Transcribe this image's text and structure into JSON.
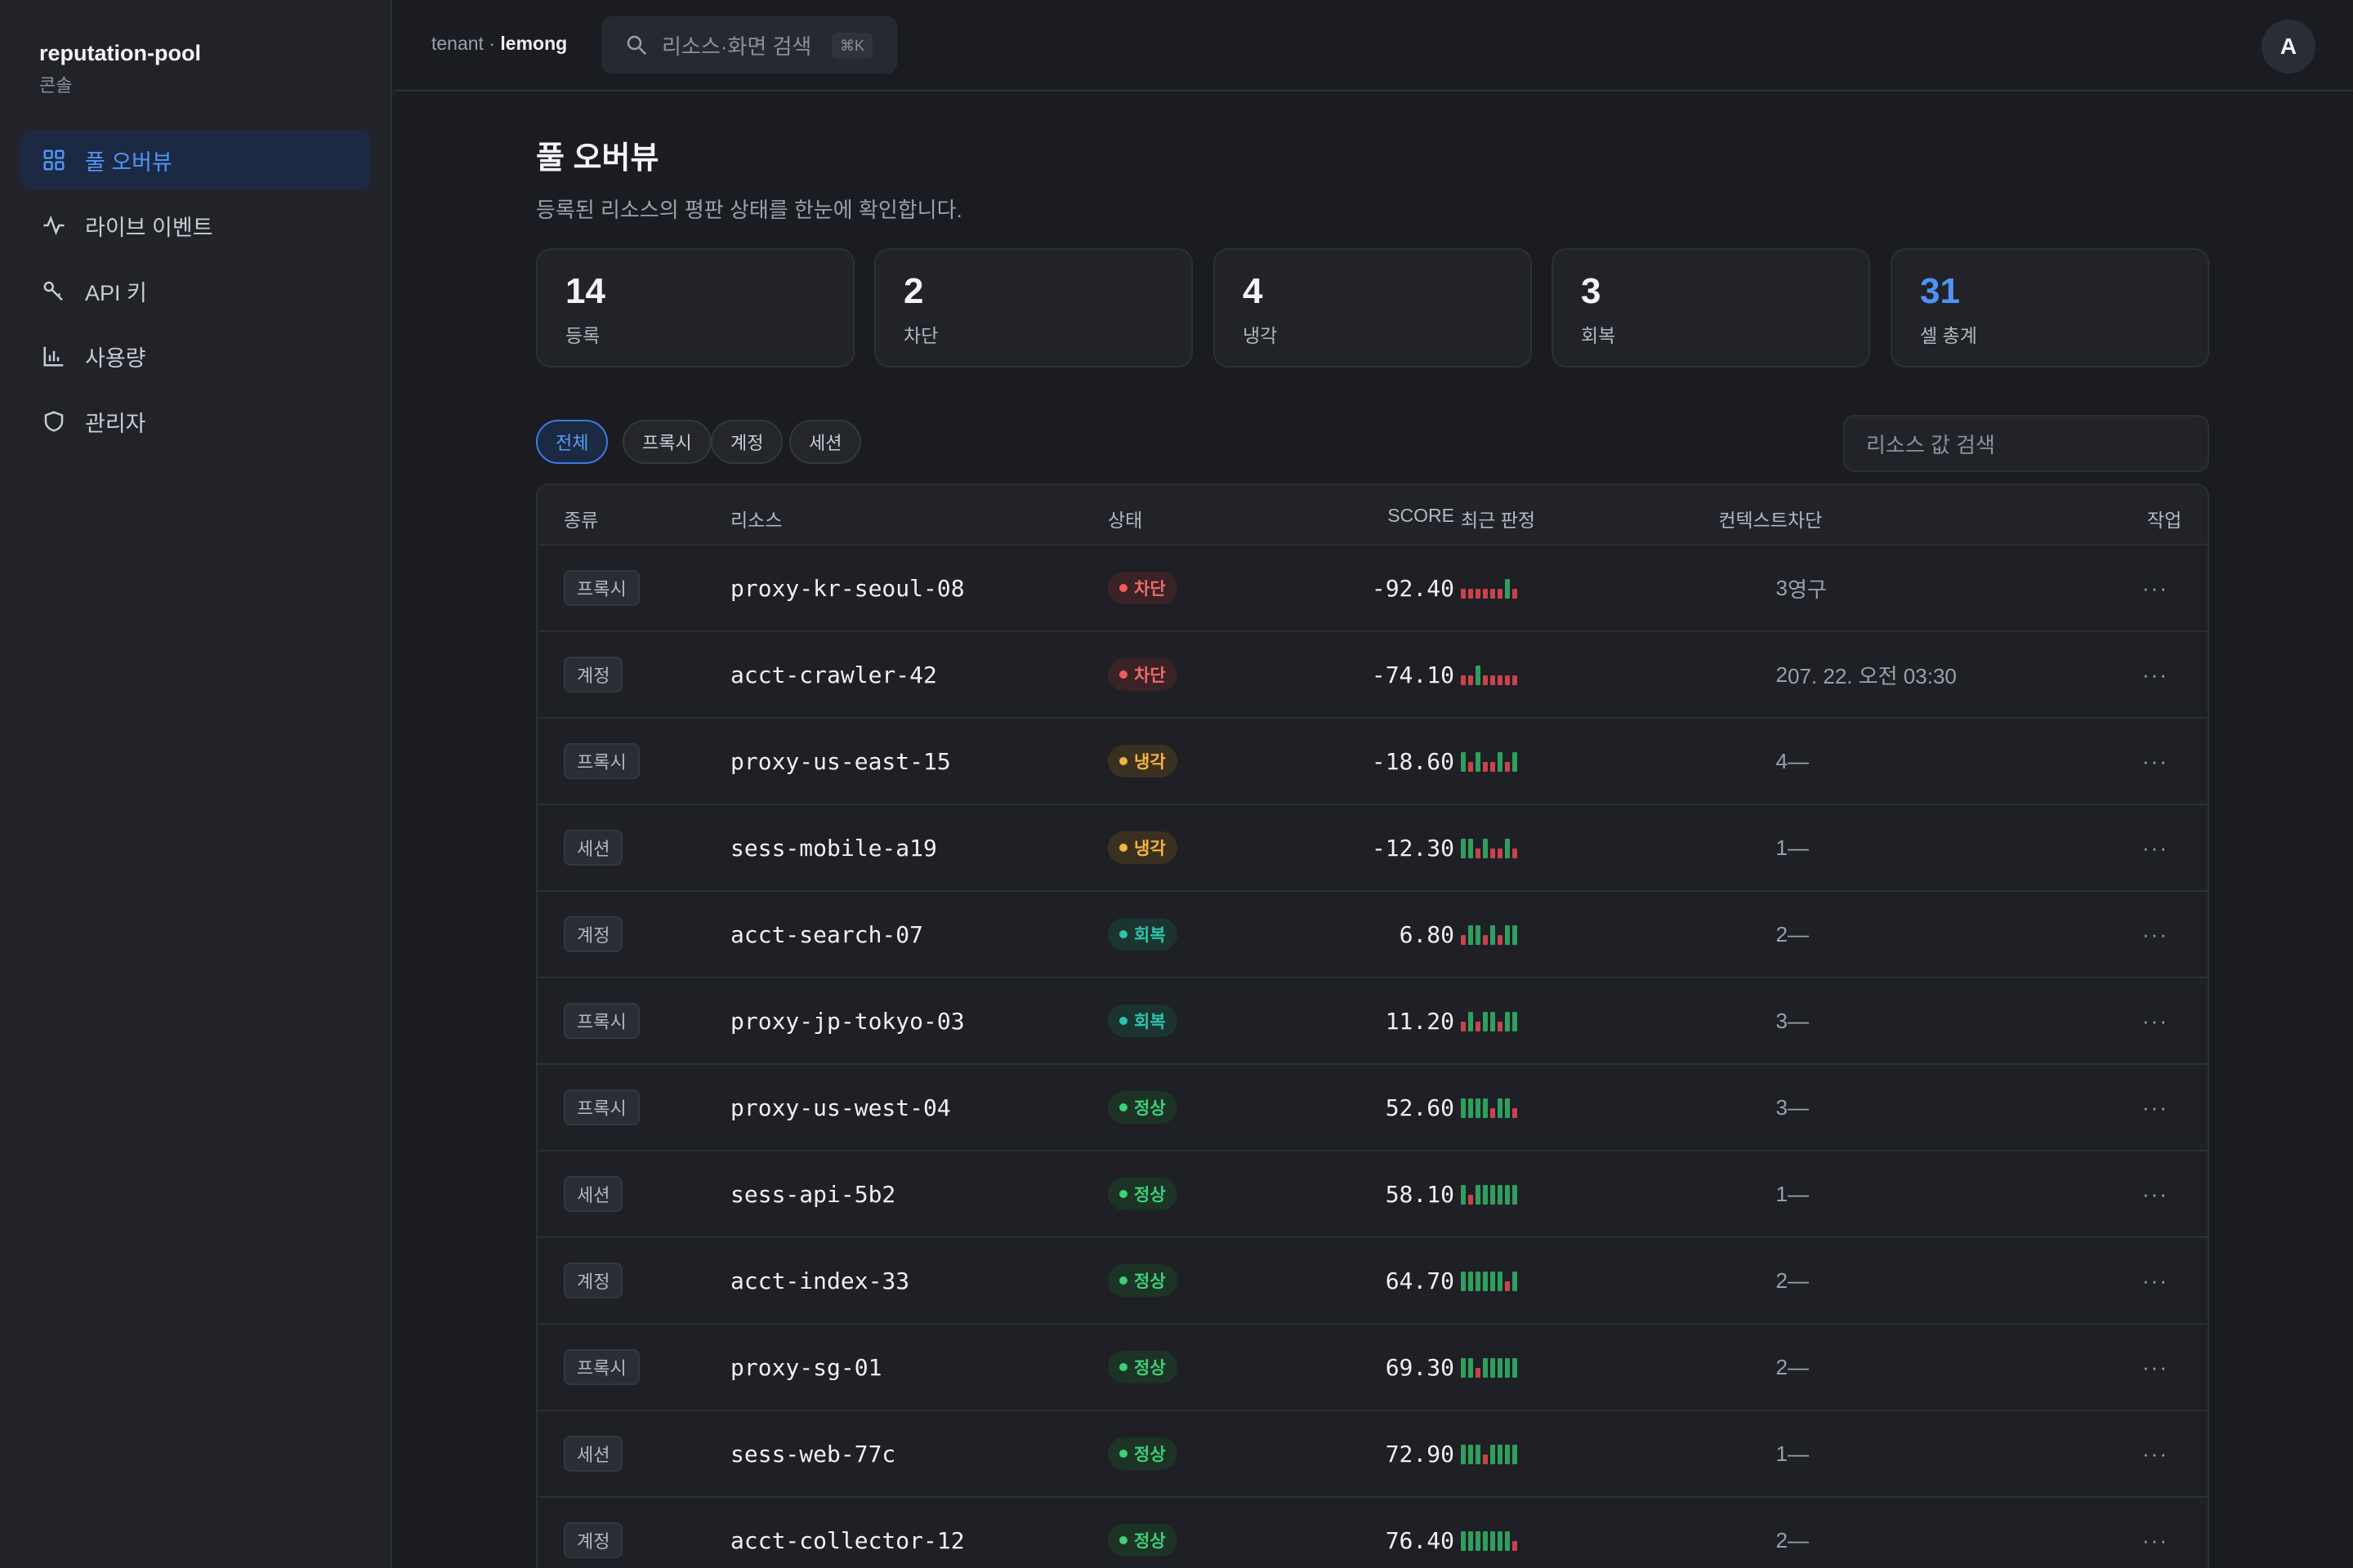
{
  "app": {
    "name": "reputation-pool",
    "subtitle": "콘솔"
  },
  "nav": {
    "items": [
      {
        "label": "풀 오버뷰",
        "icon": "grid-icon",
        "active": true
      },
      {
        "label": "라이브 이벤트",
        "icon": "activity-icon",
        "active": false
      },
      {
        "label": "API 키",
        "icon": "key-icon",
        "active": false
      },
      {
        "label": "사용량",
        "icon": "bar-chart-icon",
        "active": false
      },
      {
        "label": "관리자",
        "icon": "shield-icon",
        "active": false
      }
    ]
  },
  "topbar": {
    "tenant_prefix": "tenant · ",
    "tenant_name": "lemong",
    "search_placeholder": "리소스·화면 검색",
    "search_shortcut": "⌘K",
    "avatar_initial": "A"
  },
  "page": {
    "title": "풀 오버뷰",
    "description": "등록된 리소스의 평판 상태를 한눈에 확인합니다."
  },
  "stats": [
    {
      "value": "14",
      "label": "등록"
    },
    {
      "value": "2",
      "label": "차단"
    },
    {
      "value": "4",
      "label": "냉각"
    },
    {
      "value": "3",
      "label": "회복"
    },
    {
      "value": "31",
      "label": "셀 총계",
      "accent": "#4f93f5"
    }
  ],
  "filters": {
    "chips": [
      "전체",
      "프록시",
      "계정",
      "세션"
    ],
    "active": "전체",
    "search_placeholder": "리소스 값 검색"
  },
  "table": {
    "headers": [
      "종류",
      "리소스",
      "상태",
      "SCORE",
      "최근 판정",
      "컨텍스트",
      "차단",
      "작업"
    ],
    "rows": [
      {
        "type": "프록시",
        "resource": "proxy-kr-seoul-08",
        "status": "차단",
        "score": "-92.40",
        "verdicts": "rrrrrrgr",
        "context": "3",
        "block": "영구",
        "action": "···"
      },
      {
        "type": "계정",
        "resource": "acct-crawler-42",
        "status": "차단",
        "score": "-74.10",
        "verdicts": "rrgrrrrr",
        "context": "2",
        "block": "07. 22. 오전 03:30",
        "action": "···"
      },
      {
        "type": "프록시",
        "resource": "proxy-us-east-15",
        "status": "냉각",
        "score": "-18.60",
        "verdicts": "grgrrgrg",
        "context": "4",
        "block": "—",
        "action": "···"
      },
      {
        "type": "세션",
        "resource": "sess-mobile-a19",
        "status": "냉각",
        "score": "-12.30",
        "verdicts": "ggrgrrgr",
        "context": "1",
        "block": "—",
        "action": "···"
      },
      {
        "type": "계정",
        "resource": "acct-search-07",
        "status": "회복",
        "score": "6.80",
        "verdicts": "rggrgrgg",
        "context": "2",
        "block": "—",
        "action": "···"
      },
      {
        "type": "프록시",
        "resource": "proxy-jp-tokyo-03",
        "status": "회복",
        "score": "11.20",
        "verdicts": "rgrggrgg",
        "context": "3",
        "block": "—",
        "action": "···"
      },
      {
        "type": "프록시",
        "resource": "proxy-us-west-04",
        "status": "정상",
        "score": "52.60",
        "verdicts": "ggggrggr",
        "context": "3",
        "block": "—",
        "action": "···"
      },
      {
        "type": "세션",
        "resource": "sess-api-5b2",
        "status": "정상",
        "score": "58.10",
        "verdicts": "grgggggg",
        "context": "1",
        "block": "—",
        "action": "···"
      },
      {
        "type": "계정",
        "resource": "acct-index-33",
        "status": "정상",
        "score": "64.70",
        "verdicts": "ggggggrg",
        "context": "2",
        "block": "—",
        "action": "···"
      },
      {
        "type": "프록시",
        "resource": "proxy-sg-01",
        "status": "정상",
        "score": "69.30",
        "verdicts": "ggrggggg",
        "context": "2",
        "block": "—",
        "action": "···"
      },
      {
        "type": "세션",
        "resource": "sess-web-77c",
        "status": "정상",
        "score": "72.90",
        "verdicts": "gggrgggg",
        "context": "1",
        "block": "—",
        "action": "···"
      },
      {
        "type": "계정",
        "resource": "acct-collector-12",
        "status": "정상",
        "score": "76.40",
        "verdicts": "gggggggr",
        "context": "2",
        "block": "—",
        "action": "···"
      }
    ]
  },
  "status_colors": {
    "차단": {
      "fg": "#f06a6a",
      "bg": "#3a2226",
      "dot": "#ef5b5b"
    },
    "냉각": {
      "fg": "#f3b440",
      "bg": "#3a3020",
      "dot": "#f3b440"
    },
    "회복": {
      "fg": "#2ec4b0",
      "bg": "#1b3432",
      "dot": "#2ec4b0"
    },
    "정상": {
      "fg": "#3ecf7a",
      "bg": "#1c3325",
      "dot": "#3ecf7a"
    }
  },
  "verdict_colors": {
    "g": "#2f9e5e",
    "r": "#c9424c"
  }
}
